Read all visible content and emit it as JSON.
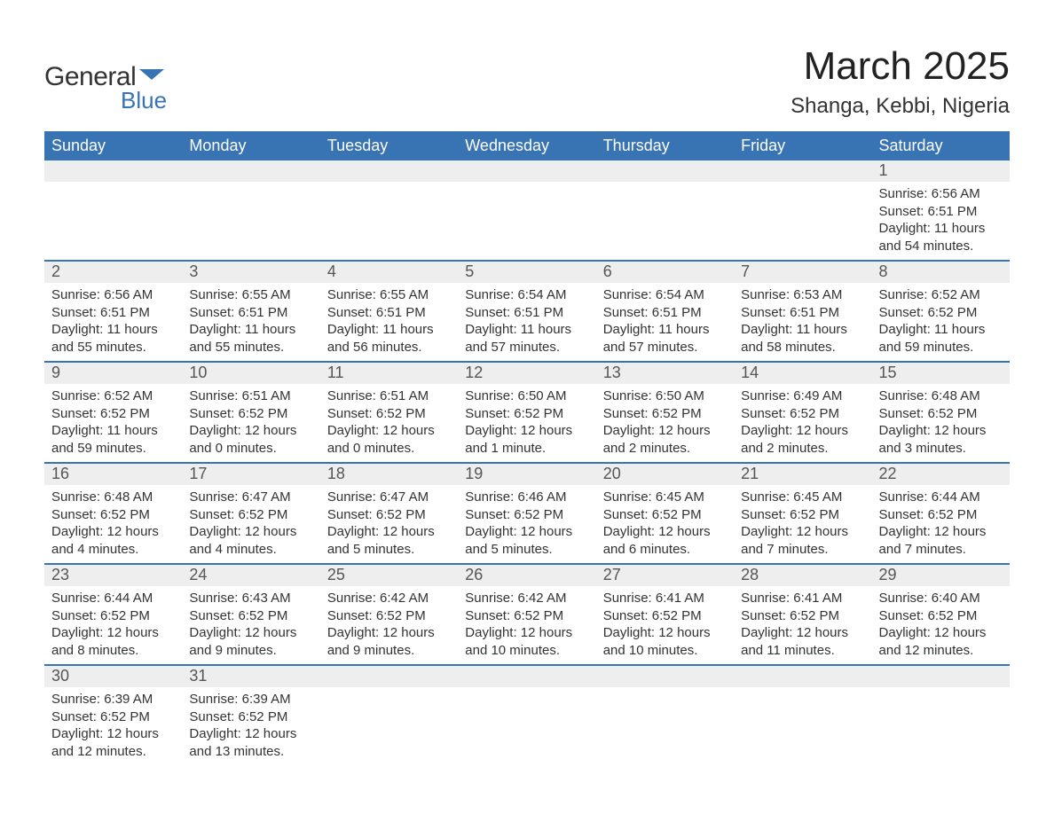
{
  "brand": {
    "name_main": "General",
    "name_accent": "Blue",
    "flag_color": "#3873b3"
  },
  "title": "March 2025",
  "location": "Shanga, Kebbi, Nigeria",
  "colors": {
    "header_bg": "#3873b3",
    "header_text": "#ffffff",
    "band_bg": "#eeeeee",
    "row_divider": "#3873b3",
    "body_text": "#333333",
    "accent": "#3873b3",
    "page_bg": "#ffffff"
  },
  "day_headers": [
    "Sunday",
    "Monday",
    "Tuesday",
    "Wednesday",
    "Thursday",
    "Friday",
    "Saturday"
  ],
  "weeks": [
    [
      {
        "day": "",
        "lines": []
      },
      {
        "day": "",
        "lines": []
      },
      {
        "day": "",
        "lines": []
      },
      {
        "day": "",
        "lines": []
      },
      {
        "day": "",
        "lines": []
      },
      {
        "day": "",
        "lines": []
      },
      {
        "day": "1",
        "lines": [
          "Sunrise: 6:56 AM",
          "Sunset: 6:51 PM",
          "Daylight: 11 hours and 54 minutes."
        ]
      }
    ],
    [
      {
        "day": "2",
        "lines": [
          "Sunrise: 6:56 AM",
          "Sunset: 6:51 PM",
          "Daylight: 11 hours and 55 minutes."
        ]
      },
      {
        "day": "3",
        "lines": [
          "Sunrise: 6:55 AM",
          "Sunset: 6:51 PM",
          "Daylight: 11 hours and 55 minutes."
        ]
      },
      {
        "day": "4",
        "lines": [
          "Sunrise: 6:55 AM",
          "Sunset: 6:51 PM",
          "Daylight: 11 hours and 56 minutes."
        ]
      },
      {
        "day": "5",
        "lines": [
          "Sunrise: 6:54 AM",
          "Sunset: 6:51 PM",
          "Daylight: 11 hours and 57 minutes."
        ]
      },
      {
        "day": "6",
        "lines": [
          "Sunrise: 6:54 AM",
          "Sunset: 6:51 PM",
          "Daylight: 11 hours and 57 minutes."
        ]
      },
      {
        "day": "7",
        "lines": [
          "Sunrise: 6:53 AM",
          "Sunset: 6:51 PM",
          "Daylight: 11 hours and 58 minutes."
        ]
      },
      {
        "day": "8",
        "lines": [
          "Sunrise: 6:52 AM",
          "Sunset: 6:52 PM",
          "Daylight: 11 hours and 59 minutes."
        ]
      }
    ],
    [
      {
        "day": "9",
        "lines": [
          "Sunrise: 6:52 AM",
          "Sunset: 6:52 PM",
          "Daylight: 11 hours and 59 minutes."
        ]
      },
      {
        "day": "10",
        "lines": [
          "Sunrise: 6:51 AM",
          "Sunset: 6:52 PM",
          "Daylight: 12 hours and 0 minutes."
        ]
      },
      {
        "day": "11",
        "lines": [
          "Sunrise: 6:51 AM",
          "Sunset: 6:52 PM",
          "Daylight: 12 hours and 0 minutes."
        ]
      },
      {
        "day": "12",
        "lines": [
          "Sunrise: 6:50 AM",
          "Sunset: 6:52 PM",
          "Daylight: 12 hours and 1 minute."
        ]
      },
      {
        "day": "13",
        "lines": [
          "Sunrise: 6:50 AM",
          "Sunset: 6:52 PM",
          "Daylight: 12 hours and 2 minutes."
        ]
      },
      {
        "day": "14",
        "lines": [
          "Sunrise: 6:49 AM",
          "Sunset: 6:52 PM",
          "Daylight: 12 hours and 2 minutes."
        ]
      },
      {
        "day": "15",
        "lines": [
          "Sunrise: 6:48 AM",
          "Sunset: 6:52 PM",
          "Daylight: 12 hours and 3 minutes."
        ]
      }
    ],
    [
      {
        "day": "16",
        "lines": [
          "Sunrise: 6:48 AM",
          "Sunset: 6:52 PM",
          "Daylight: 12 hours and 4 minutes."
        ]
      },
      {
        "day": "17",
        "lines": [
          "Sunrise: 6:47 AM",
          "Sunset: 6:52 PM",
          "Daylight: 12 hours and 4 minutes."
        ]
      },
      {
        "day": "18",
        "lines": [
          "Sunrise: 6:47 AM",
          "Sunset: 6:52 PM",
          "Daylight: 12 hours and 5 minutes."
        ]
      },
      {
        "day": "19",
        "lines": [
          "Sunrise: 6:46 AM",
          "Sunset: 6:52 PM",
          "Daylight: 12 hours and 5 minutes."
        ]
      },
      {
        "day": "20",
        "lines": [
          "Sunrise: 6:45 AM",
          "Sunset: 6:52 PM",
          "Daylight: 12 hours and 6 minutes."
        ]
      },
      {
        "day": "21",
        "lines": [
          "Sunrise: 6:45 AM",
          "Sunset: 6:52 PM",
          "Daylight: 12 hours and 7 minutes."
        ]
      },
      {
        "day": "22",
        "lines": [
          "Sunrise: 6:44 AM",
          "Sunset: 6:52 PM",
          "Daylight: 12 hours and 7 minutes."
        ]
      }
    ],
    [
      {
        "day": "23",
        "lines": [
          "Sunrise: 6:44 AM",
          "Sunset: 6:52 PM",
          "Daylight: 12 hours and 8 minutes."
        ]
      },
      {
        "day": "24",
        "lines": [
          "Sunrise: 6:43 AM",
          "Sunset: 6:52 PM",
          "Daylight: 12 hours and 9 minutes."
        ]
      },
      {
        "day": "25",
        "lines": [
          "Sunrise: 6:42 AM",
          "Sunset: 6:52 PM",
          "Daylight: 12 hours and 9 minutes."
        ]
      },
      {
        "day": "26",
        "lines": [
          "Sunrise: 6:42 AM",
          "Sunset: 6:52 PM",
          "Daylight: 12 hours and 10 minutes."
        ]
      },
      {
        "day": "27",
        "lines": [
          "Sunrise: 6:41 AM",
          "Sunset: 6:52 PM",
          "Daylight: 12 hours and 10 minutes."
        ]
      },
      {
        "day": "28",
        "lines": [
          "Sunrise: 6:41 AM",
          "Sunset: 6:52 PM",
          "Daylight: 12 hours and 11 minutes."
        ]
      },
      {
        "day": "29",
        "lines": [
          "Sunrise: 6:40 AM",
          "Sunset: 6:52 PM",
          "Daylight: 12 hours and 12 minutes."
        ]
      }
    ],
    [
      {
        "day": "30",
        "lines": [
          "Sunrise: 6:39 AM",
          "Sunset: 6:52 PM",
          "Daylight: 12 hours and 12 minutes."
        ]
      },
      {
        "day": "31",
        "lines": [
          "Sunrise: 6:39 AM",
          "Sunset: 6:52 PM",
          "Daylight: 12 hours and 13 minutes."
        ]
      },
      {
        "day": "",
        "lines": []
      },
      {
        "day": "",
        "lines": []
      },
      {
        "day": "",
        "lines": []
      },
      {
        "day": "",
        "lines": []
      },
      {
        "day": "",
        "lines": []
      }
    ]
  ]
}
